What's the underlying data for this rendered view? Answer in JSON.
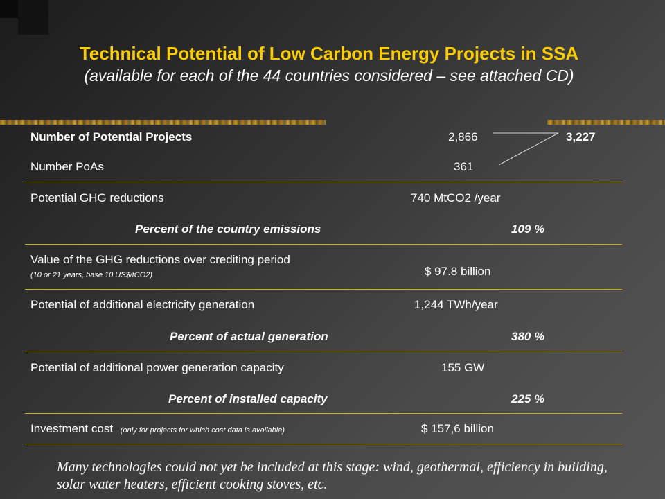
{
  "title": "Technical Potential of Low Carbon Energy Projects in SSA",
  "subtitle": "(available for each of the 44 countries considered – see attached CD)",
  "rows": {
    "projects": {
      "label": "Number of Potential Projects",
      "value": "2,866",
      "total": "3,227"
    },
    "poas": {
      "label": "Number PoAs",
      "value": "361"
    },
    "ghg": {
      "label": "Potential GHG reductions",
      "value": "740 MtCO2 /year"
    },
    "ghg_pct": {
      "label": "Percent of the country emissions",
      "value": "109 %"
    },
    "ghg_value": {
      "label": "Value of the GHG reductions over crediting period",
      "note": "(10 or 21 years, base 10 US$/tCO2)",
      "value": "$ 97.8 billion"
    },
    "elec": {
      "label": "Potential of additional electricity generation",
      "value": "1,244 TWh/year"
    },
    "elec_pct": {
      "label": "Percent of actual generation",
      "value": "380 %"
    },
    "capacity": {
      "label": "Potential of additional power generation capacity",
      "value": "155 GW"
    },
    "cap_pct": {
      "label": "Percent of installed capacity",
      "value": "225 %"
    },
    "invest": {
      "label": "Investment cost",
      "note": "(only for projects for which cost data is available)",
      "value": "$ 157,6 billion"
    }
  },
  "footnote": "Many technologies could not yet be included at this stage: wind, geothermal, efficiency in building, solar water heaters, efficient cooking stoves, etc.",
  "colors": {
    "title": "#ffcc00",
    "rule": "#c8b400",
    "text": "#ffffff"
  }
}
